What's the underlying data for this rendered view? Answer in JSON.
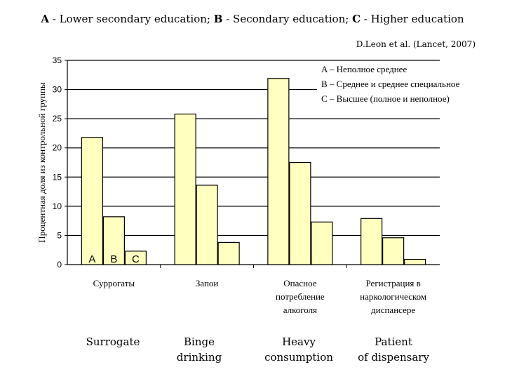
{
  "title": {
    "a_key": "A",
    "a_text": " - Lower secondary education; ",
    "b_key": "B",
    "b_text": " - Secondary education; ",
    "c_key": "C",
    "c_text": " - Higher  education"
  },
  "source": "D.Leon  et  al. (Lancet, 2007)",
  "english_labels": [
    {
      "lines": [
        "Surrogate"
      ]
    },
    {
      "lines": [
        "Binge",
        "drinking"
      ]
    },
    {
      "lines": [
        "Heavy",
        "consumption"
      ]
    },
    {
      "lines": [
        "Patient",
        "of dispensary"
      ]
    }
  ],
  "chart_data": {
    "type": "bar",
    "ylabel": "Процентная доля из контрольной группы",
    "ylim": [
      0,
      35
    ],
    "yticks": [
      0,
      5,
      10,
      15,
      20,
      25,
      30,
      35
    ],
    "grid": true,
    "legend_position": "top-right",
    "categories": [
      {
        "lines": [
          "Суррогаты"
        ]
      },
      {
        "lines": [
          "Запои"
        ]
      },
      {
        "lines": [
          "Опасное",
          "потребление",
          "алкоголя"
        ]
      },
      {
        "lines": [
          "Регистрация в",
          "наркологическом",
          "диспансере"
        ]
      }
    ],
    "series": [
      {
        "name": "A",
        "values": [
          21.8,
          25.8,
          31.9,
          7.9
        ]
      },
      {
        "name": "B",
        "values": [
          8.2,
          13.6,
          17.5,
          4.6
        ]
      },
      {
        "name": "C",
        "values": [
          2.3,
          3.8,
          7.3,
          0.9
        ]
      }
    ],
    "legend": [
      "A – Неполное среднее",
      "B – Среднее и среднее специальное",
      "C – Высшее (полное и неполное)"
    ],
    "bar_labels": [
      "A",
      "B",
      "C"
    ],
    "bar_color": "#ffffc0"
  }
}
